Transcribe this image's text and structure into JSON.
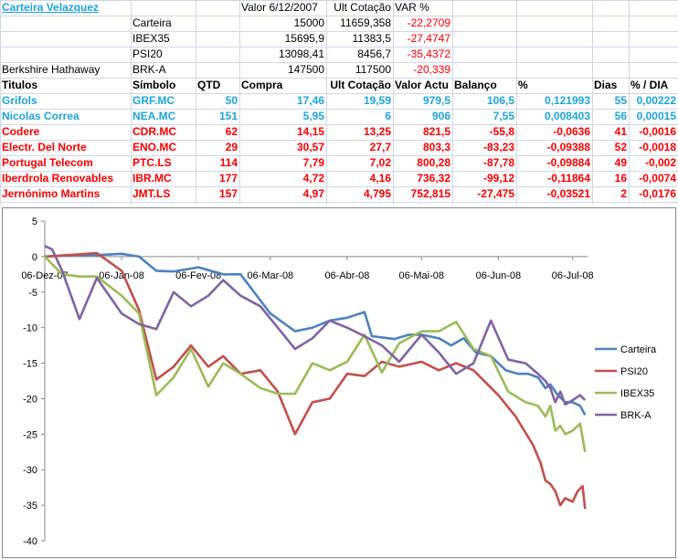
{
  "sheet": {
    "title": "Carteira Velazquez",
    "header_valor": "Valor 6/12/2007",
    "header_ult": "Ult Cotação",
    "header_var": "VAR %",
    "summary": [
      {
        "name": "",
        "label": "Carteira",
        "valor": "15000",
        "ult": "11659,358",
        "var": "-22,2709"
      },
      {
        "name": "",
        "label": "IBEX35",
        "valor": "15695,9",
        "ult": "11383,5",
        "var": "-27,4747"
      },
      {
        "name": "",
        "label": "PSI20",
        "valor": "13098,41",
        "ult": "8456,7",
        "var": "-35,4372"
      },
      {
        "name": "Berkshire Hathaway",
        "label": "BRK-A",
        "valor": "147500",
        "ult": "117500",
        "var": "-20,339"
      }
    ],
    "table_headers": [
      "Titulos",
      "Símbolo",
      "QTD",
      "Compra",
      "Ult Cotação",
      "Valor Actu",
      "Balanço",
      "%",
      "Dias",
      "% / DIA"
    ],
    "rows": [
      {
        "titulo": "Grifols",
        "simbolo": "GRF.MC",
        "qtd": "50",
        "compra": "17,46",
        "ult": "19,59",
        "valor": "979,5",
        "balanco": "106,5",
        "pct": "0,121993",
        "dias": "55",
        "pdia": "0,00222",
        "color": "#1fa2dc"
      },
      {
        "titulo": "Nicolas Correa",
        "simbolo": "NEA.MC",
        "qtd": "151",
        "compra": "5,95",
        "ult": "6",
        "valor": "906",
        "balanco": "7,55",
        "pct": "0,008403",
        "dias": "56",
        "pdia": "0,00015",
        "color": "#1fa2dc"
      },
      {
        "titulo": "Codere",
        "simbolo": "CDR.MC",
        "qtd": "62",
        "compra": "14,15",
        "ult": "13,25",
        "valor": "821,5",
        "balanco": "-55,8",
        "pct": "-0,0636",
        "dias": "41",
        "pdia": "-0,0016",
        "color": "#ff0000"
      },
      {
        "titulo": "Electr. Del Norte",
        "simbolo": "ENO.MC",
        "qtd": "29",
        "compra": "30,57",
        "ult": "27,7",
        "valor": "803,3",
        "balanco": "-83,23",
        "pct": "-0,09388",
        "dias": "52",
        "pdia": "-0,0018",
        "color": "#ff0000"
      },
      {
        "titulo": "Portugal Telecom",
        "simbolo": "PTC.LS",
        "qtd": "114",
        "compra": "7,79",
        "ult": "7,02",
        "valor": "800,28",
        "balanco": "-87,78",
        "pct": "-0,09884",
        "dias": "49",
        "pdia": "-0,002",
        "color": "#ff0000"
      },
      {
        "titulo": "Iberdrola Renovables",
        "simbolo": "IBR.MC",
        "qtd": "177",
        "compra": "4,72",
        "ult": "4,16",
        "valor": "736,32",
        "balanco": "-99,12",
        "pct": "-0,11864",
        "dias": "16",
        "pdia": "-0,0074",
        "color": "#ff0000"
      },
      {
        "titulo": "Jernónimo Martins",
        "simbolo": "JMT.LS",
        "qtd": "157",
        "compra": "4,97",
        "ult": "4,795",
        "valor": "752,815",
        "balanco": "-27,475",
        "pct": "-0,03521",
        "dias": "2",
        "pdia": "-0,0176",
        "color": "#ff0000"
      }
    ]
  },
  "chart_data": {
    "type": "line",
    "ylim": [
      -40,
      5
    ],
    "yticks": [
      5,
      0,
      -5,
      -10,
      -15,
      -20,
      -25,
      -30,
      -35,
      -40
    ],
    "xlim": [
      "2007-12-06",
      "2008-07-12"
    ],
    "xticks": [
      {
        "date": "2007-12-06",
        "label": "06-Dez-07"
      },
      {
        "date": "2008-01-06",
        "label": "06-Jan-08"
      },
      {
        "date": "2008-02-06",
        "label": "06-Fev-08"
      },
      {
        "date": "2008-03-06",
        "label": "06-Mar-08"
      },
      {
        "date": "2008-04-06",
        "label": "06-Abr-08"
      },
      {
        "date": "2008-05-06",
        "label": "06-Mai-08"
      },
      {
        "date": "2008-06-06",
        "label": "06-Jun-08"
      },
      {
        "date": "2008-07-06",
        "label": "06-Jul-08"
      }
    ],
    "legend_position": "right",
    "grid": false,
    "series": [
      {
        "name": "Carteira",
        "color": "#4f81bd",
        "points": [
          [
            "2007-12-06",
            0
          ],
          [
            "2007-12-16",
            0.2
          ],
          [
            "2007-12-27",
            0.2
          ],
          [
            "2008-01-06",
            0.4
          ],
          [
            "2008-01-13",
            0
          ],
          [
            "2008-01-20",
            -2
          ],
          [
            "2008-01-27",
            -2.1
          ],
          [
            "2008-02-06",
            -1.5
          ],
          [
            "2008-02-16",
            -2.5
          ],
          [
            "2008-02-23",
            -2.5
          ],
          [
            "2008-03-06",
            -8
          ],
          [
            "2008-03-16",
            -10.5
          ],
          [
            "2008-03-23",
            -10
          ],
          [
            "2008-03-30",
            -9
          ],
          [
            "2008-04-06",
            -8.6
          ],
          [
            "2008-04-13",
            -7.8
          ],
          [
            "2008-04-16",
            -11.2
          ],
          [
            "2008-04-25",
            -11.6
          ],
          [
            "2008-05-01",
            -11
          ],
          [
            "2008-05-06",
            -11
          ],
          [
            "2008-05-13",
            -11.5
          ],
          [
            "2008-05-18",
            -12.5
          ],
          [
            "2008-05-23",
            -11.5
          ],
          [
            "2008-05-28",
            -13.5
          ],
          [
            "2008-06-03",
            -14
          ],
          [
            "2008-06-09",
            -16
          ],
          [
            "2008-06-14",
            -16.5
          ],
          [
            "2008-06-18",
            -16.5
          ],
          [
            "2008-06-22",
            -17
          ],
          [
            "2008-06-25",
            -18.5
          ],
          [
            "2008-06-27",
            -18
          ],
          [
            "2008-06-30",
            -19.5
          ],
          [
            "2008-07-03",
            -20.5
          ],
          [
            "2008-07-06",
            -20.5
          ],
          [
            "2008-07-09",
            -21
          ],
          [
            "2008-07-11",
            -22.3
          ]
        ]
      },
      {
        "name": "PSI20",
        "color": "#c0504d",
        "points": [
          [
            "2007-12-06",
            0
          ],
          [
            "2007-12-27",
            0.5
          ],
          [
            "2008-01-06",
            -2
          ],
          [
            "2008-01-13",
            -7.5
          ],
          [
            "2008-01-20",
            -17.3
          ],
          [
            "2008-01-27",
            -15.5
          ],
          [
            "2008-02-03",
            -12.5
          ],
          [
            "2008-02-10",
            -15.5
          ],
          [
            "2008-02-16",
            -14
          ],
          [
            "2008-02-23",
            -16.5
          ],
          [
            "2008-03-02",
            -16
          ],
          [
            "2008-03-09",
            -19
          ],
          [
            "2008-03-16",
            -25
          ],
          [
            "2008-03-23",
            -20.5
          ],
          [
            "2008-03-30",
            -20
          ],
          [
            "2008-04-06",
            -16.5
          ],
          [
            "2008-04-13",
            -16.8
          ],
          [
            "2008-04-20",
            -14.8
          ],
          [
            "2008-04-27",
            -15.5
          ],
          [
            "2008-05-06",
            -14.8
          ],
          [
            "2008-05-13",
            -16
          ],
          [
            "2008-05-20",
            -15
          ],
          [
            "2008-05-27",
            -16
          ],
          [
            "2008-06-06",
            -19.5
          ],
          [
            "2008-06-13",
            -22.5
          ],
          [
            "2008-06-20",
            -26.5
          ],
          [
            "2008-06-23",
            -29
          ],
          [
            "2008-06-25",
            -31.5
          ],
          [
            "2008-06-27",
            -32
          ],
          [
            "2008-06-29",
            -33
          ],
          [
            "2008-07-01",
            -35
          ],
          [
            "2008-07-03",
            -34
          ],
          [
            "2008-07-06",
            -34.5
          ],
          [
            "2008-07-08",
            -33
          ],
          [
            "2008-07-10",
            -32.3
          ],
          [
            "2008-07-11",
            -35.5
          ]
        ]
      },
      {
        "name": "IBEX35",
        "color": "#9bbb59",
        "points": [
          [
            "2007-12-06",
            0
          ],
          [
            "2007-12-13",
            -2.5
          ],
          [
            "2007-12-20",
            -2.8
          ],
          [
            "2007-12-27",
            -2.8
          ],
          [
            "2008-01-06",
            -5.5
          ],
          [
            "2008-01-13",
            -8
          ],
          [
            "2008-01-20",
            -19.5
          ],
          [
            "2008-01-27",
            -17
          ],
          [
            "2008-02-03",
            -13
          ],
          [
            "2008-02-10",
            -18.3
          ],
          [
            "2008-02-16",
            -15
          ],
          [
            "2008-02-23",
            -16.5
          ],
          [
            "2008-03-02",
            -18.5
          ],
          [
            "2008-03-09",
            -19.3
          ],
          [
            "2008-03-16",
            -19.3
          ],
          [
            "2008-03-23",
            -15
          ],
          [
            "2008-03-30",
            -16
          ],
          [
            "2008-04-06",
            -14.8
          ],
          [
            "2008-04-13",
            -11
          ],
          [
            "2008-04-20",
            -16.3
          ],
          [
            "2008-04-27",
            -12.2
          ],
          [
            "2008-05-06",
            -10.5
          ],
          [
            "2008-05-13",
            -10.5
          ],
          [
            "2008-05-20",
            -9.2
          ],
          [
            "2008-05-27",
            -13
          ],
          [
            "2008-06-03",
            -14
          ],
          [
            "2008-06-10",
            -19
          ],
          [
            "2008-06-17",
            -20.5
          ],
          [
            "2008-06-22",
            -21
          ],
          [
            "2008-06-25",
            -22.5
          ],
          [
            "2008-06-27",
            -21
          ],
          [
            "2008-06-29",
            -24.5
          ],
          [
            "2008-07-01",
            -23.8
          ],
          [
            "2008-07-03",
            -25
          ],
          [
            "2008-07-06",
            -24.5
          ],
          [
            "2008-07-09",
            -23.5
          ],
          [
            "2008-07-11",
            -27.5
          ]
        ]
      },
      {
        "name": "BRK-A",
        "color": "#8064a2",
        "points": [
          [
            "2007-12-06",
            1.5
          ],
          [
            "2007-12-09",
            1
          ],
          [
            "2007-12-13",
            -2
          ],
          [
            "2007-12-20",
            -8.8
          ],
          [
            "2007-12-27",
            -3
          ],
          [
            "2008-01-06",
            -8
          ],
          [
            "2008-01-13",
            -9.5
          ],
          [
            "2008-01-20",
            -10.2
          ],
          [
            "2008-01-27",
            -5
          ],
          [
            "2008-02-03",
            -7
          ],
          [
            "2008-02-10",
            -5.5
          ],
          [
            "2008-02-16",
            -3.3
          ],
          [
            "2008-02-23",
            -5.5
          ],
          [
            "2008-03-02",
            -7
          ],
          [
            "2008-03-09",
            -10
          ],
          [
            "2008-03-16",
            -13
          ],
          [
            "2008-03-23",
            -11.5
          ],
          [
            "2008-03-30",
            -9
          ],
          [
            "2008-04-06",
            -10
          ],
          [
            "2008-04-13",
            -11.2
          ],
          [
            "2008-04-20",
            -12.5
          ],
          [
            "2008-04-27",
            -14.8
          ],
          [
            "2008-05-06",
            -11
          ],
          [
            "2008-05-13",
            -13.5
          ],
          [
            "2008-05-20",
            -16.5
          ],
          [
            "2008-05-27",
            -15
          ],
          [
            "2008-06-03",
            -9
          ],
          [
            "2008-06-10",
            -14.5
          ],
          [
            "2008-06-17",
            -15
          ],
          [
            "2008-06-22",
            -16.5
          ],
          [
            "2008-06-25",
            -17.5
          ],
          [
            "2008-06-27",
            -18.5
          ],
          [
            "2008-06-29",
            -20.5
          ],
          [
            "2008-07-01",
            -19
          ],
          [
            "2008-07-03",
            -20.8
          ],
          [
            "2008-07-06",
            -20.2
          ],
          [
            "2008-07-09",
            -19.5
          ],
          [
            "2008-07-11",
            -20.2
          ]
        ]
      }
    ]
  }
}
